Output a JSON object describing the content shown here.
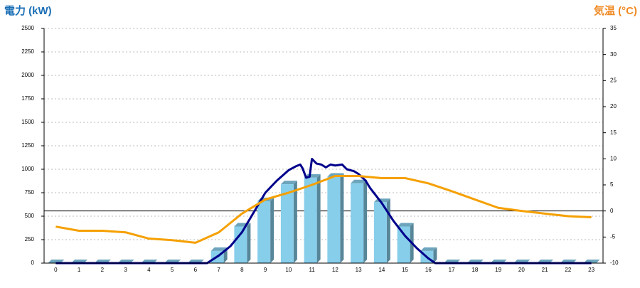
{
  "chart_data": {
    "type": "combo",
    "title_left": "電力 (kW)",
    "title_right": "気温 (°C)",
    "categories": [
      "0",
      "1",
      "2",
      "3",
      "4",
      "5",
      "6",
      "7",
      "8",
      "9",
      "10",
      "11",
      "12",
      "13",
      "14",
      "15",
      "16",
      "17",
      "18",
      "19",
      "20",
      "21",
      "22",
      "23"
    ],
    "ylim": [
      0,
      2500
    ],
    "yticks": [
      0,
      250,
      500,
      750,
      1000,
      1250,
      1500,
      1750,
      2000,
      2250,
      2500
    ],
    "y2lim": [
      -10,
      35
    ],
    "y2ticks": [
      -10,
      -5,
      0,
      5,
      10,
      15,
      20,
      25,
      30,
      35
    ],
    "grid": true,
    "reference_line": {
      "axis": "y2",
      "value": 0,
      "color": "#000000"
    },
    "series": [
      {
        "type": "bar",
        "color": "#87ceeb",
        "values": [
          0,
          0,
          0,
          0,
          0,
          0,
          0,
          130,
          390,
          660,
          840,
          910,
          920,
          850,
          650,
          390,
          130,
          0,
          0,
          0,
          0,
          0,
          0,
          0
        ]
      },
      {
        "type": "line",
        "color": "#00008b",
        "x": [
          0,
          6.5,
          7,
          7.5,
          8,
          8.5,
          9,
          9.5,
          10,
          10.3,
          10.5,
          10.6,
          10.75,
          10.9,
          11,
          11.2,
          11.4,
          11.6,
          11.8,
          12,
          12.3,
          12.5,
          12.8,
          13,
          13.3,
          13.5,
          14,
          14.5,
          15,
          15.5,
          16,
          16.3,
          23
        ],
        "values": [
          0,
          0,
          80,
          180,
          330,
          540,
          750,
          880,
          990,
          1030,
          1050,
          1010,
          910,
          920,
          1110,
          1060,
          1050,
          1020,
          1050,
          1040,
          1050,
          1000,
          980,
          950,
          880,
          800,
          640,
          450,
          290,
          160,
          50,
          0,
          0
        ]
      },
      {
        "type": "line",
        "color": "#f5a000",
        "axis": "y2",
        "values": [
          -3,
          -3.8,
          -3.8,
          -4.1,
          -5.3,
          -5.6,
          -6.1,
          -4.1,
          -0.5,
          2.2,
          3.5,
          5,
          6.7,
          6.7,
          6.3,
          6.3,
          5.3,
          3.8,
          2.2,
          0.6,
          0,
          -0.5,
          -1,
          -1.2
        ]
      }
    ]
  }
}
